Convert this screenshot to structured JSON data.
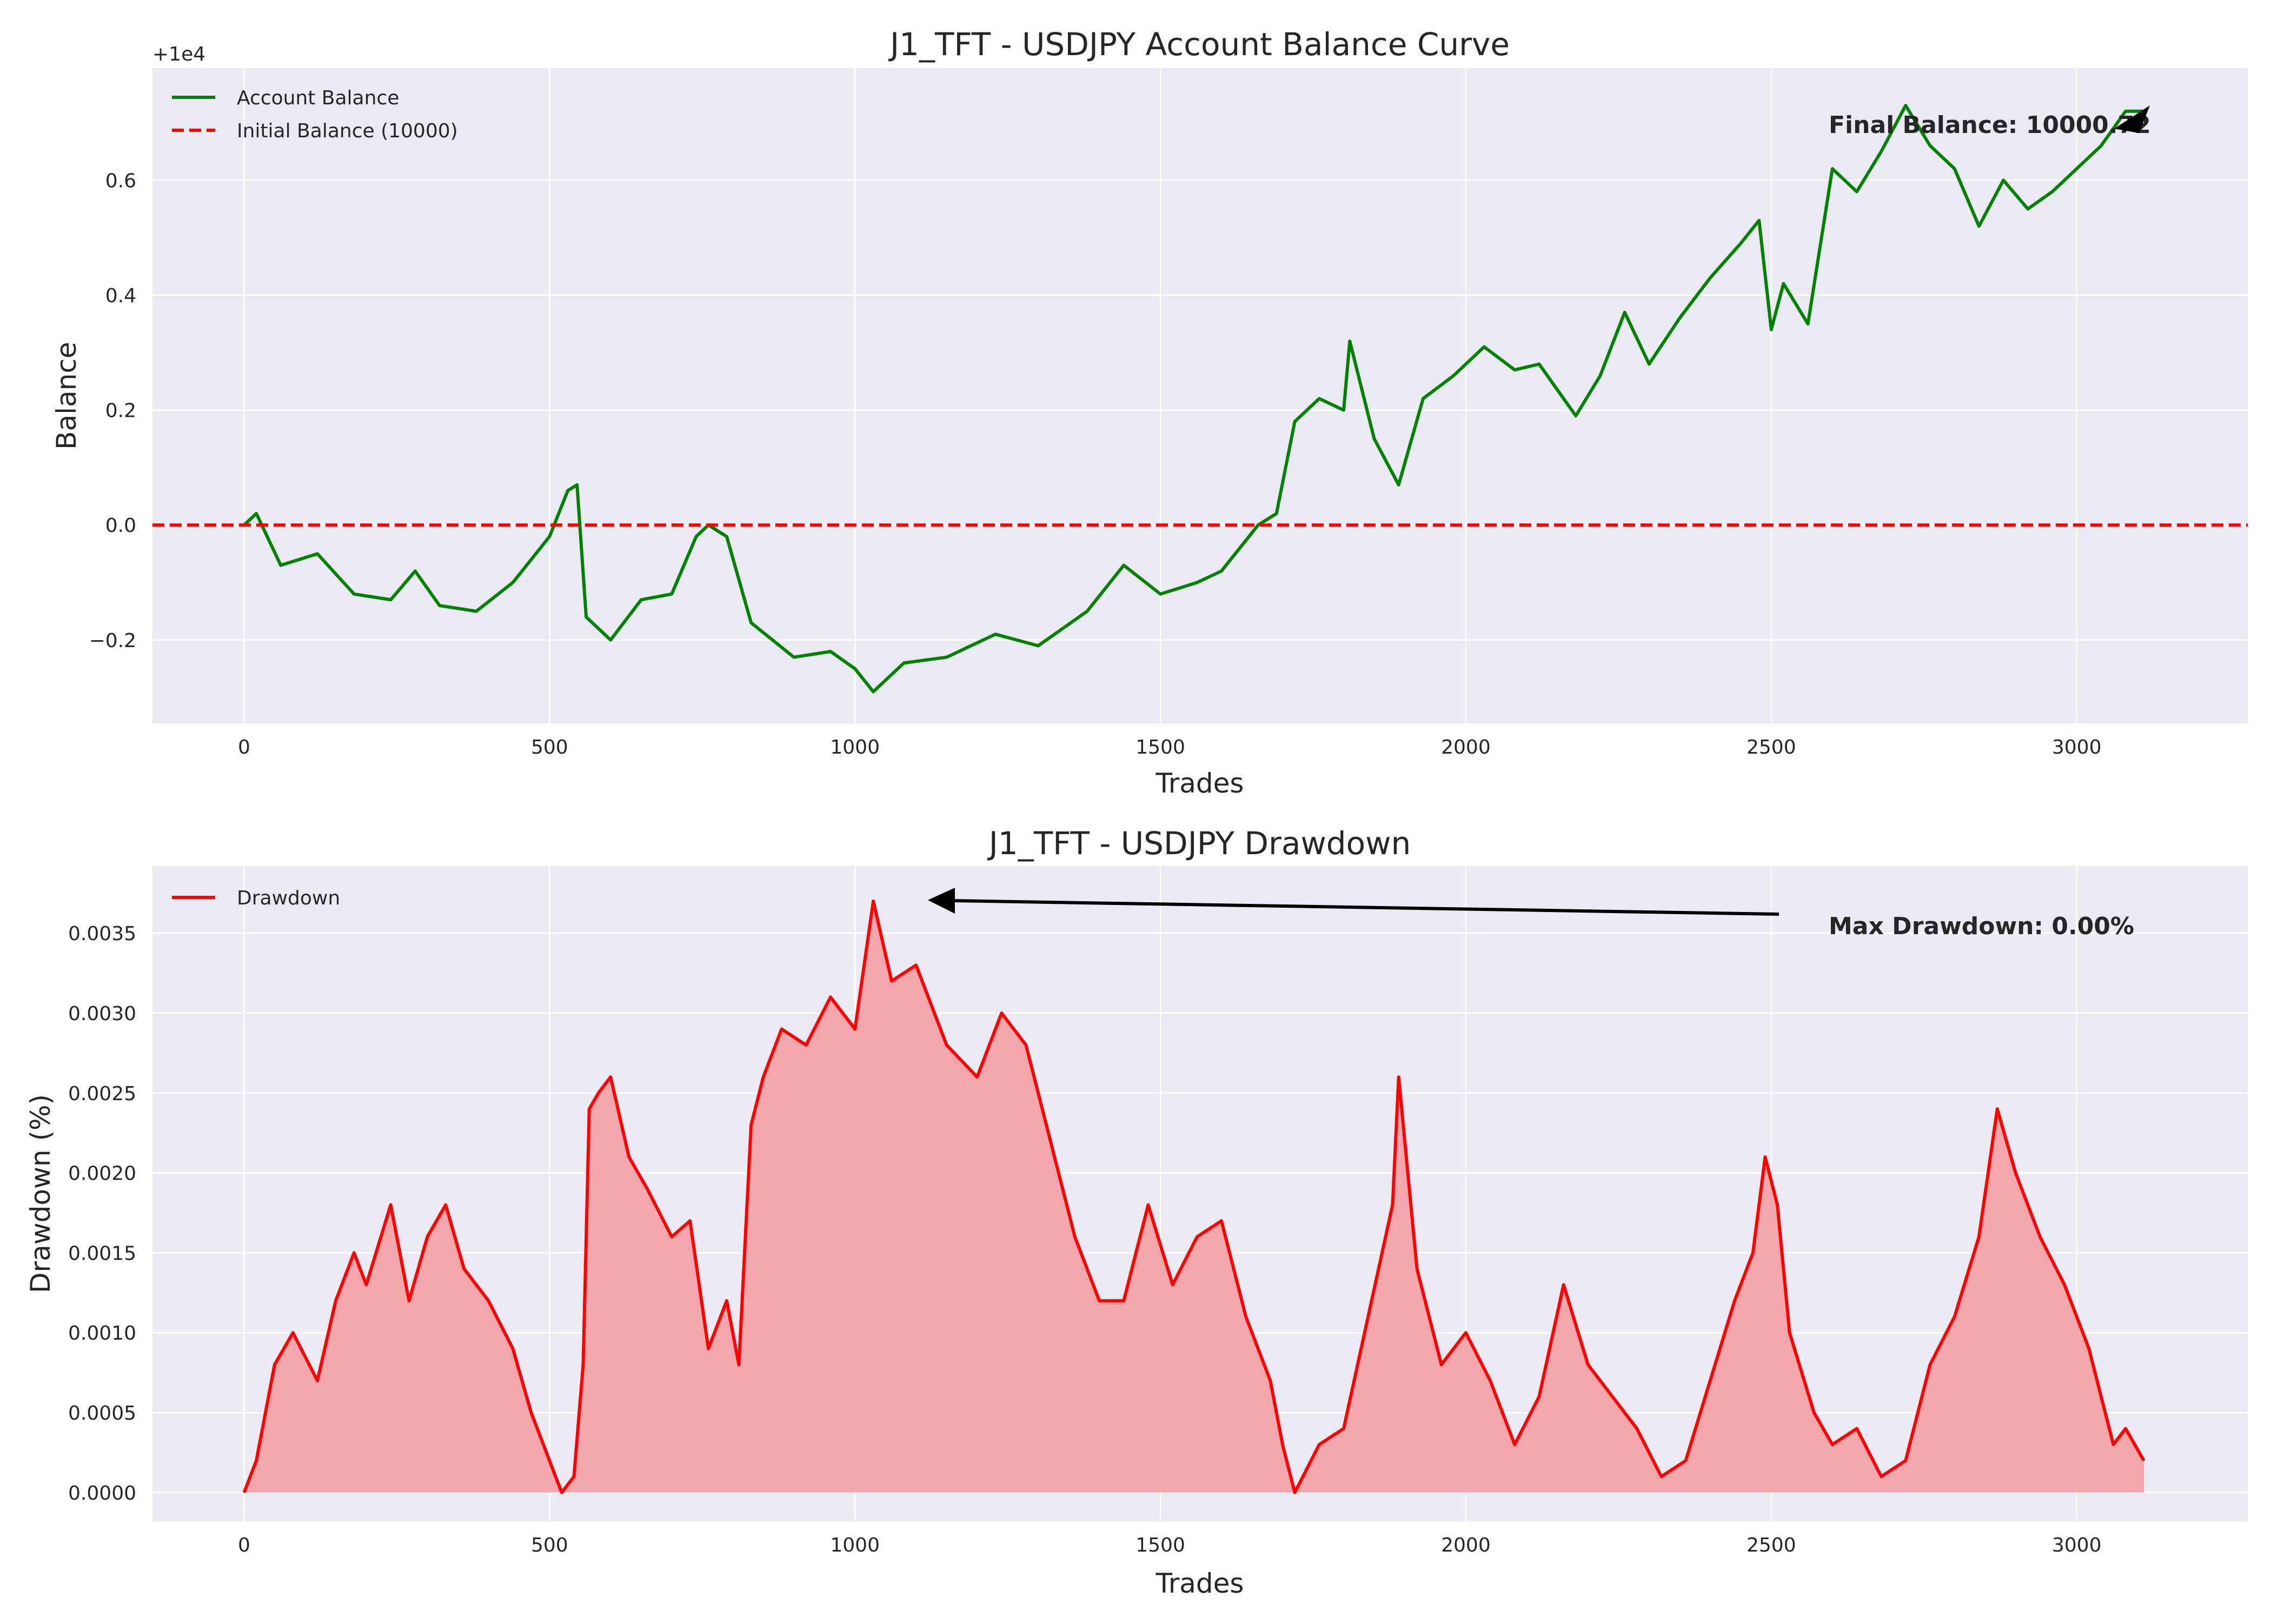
{
  "chart_data": [
    {
      "type": "line",
      "title": "J1_TFT - USDJPY Account Balance Curve",
      "xlabel": "Trades",
      "ylabel": "Balance",
      "offset_label": "+1e4",
      "xlim": [
        -150,
        3280
      ],
      "ylim": [
        -0.345,
        0.795
      ],
      "xticks": [
        0,
        500,
        1000,
        1500,
        2000,
        2500,
        3000
      ],
      "yticks": [
        -0.2,
        0.0,
        0.2,
        0.4,
        0.6
      ],
      "ytick_labels": [
        "−0.2",
        "0.0",
        "0.2",
        "0.4",
        "0.6"
      ],
      "grid": true,
      "legend": "top-left",
      "annotation": "Final Balance: 10000.72",
      "series": [
        {
          "name": "Account Balance",
          "color": "#008000",
          "x": [
            0,
            20,
            60,
            120,
            180,
            240,
            280,
            320,
            380,
            440,
            500,
            530,
            545,
            560,
            600,
            650,
            700,
            740,
            760,
            790,
            830,
            900,
            960,
            1000,
            1030,
            1080,
            1150,
            1230,
            1300,
            1380,
            1440,
            1500,
            1560,
            1600,
            1660,
            1690,
            1720,
            1760,
            1800,
            1810,
            1850,
            1890,
            1930,
            1980,
            2030,
            2080,
            2120,
            2180,
            2220,
            2260,
            2300,
            2350,
            2400,
            2450,
            2480,
            2500,
            2520,
            2560,
            2600,
            2640,
            2680,
            2720,
            2760,
            2800,
            2840,
            2880,
            2920,
            2960,
            3000,
            3040,
            3080,
            3110
          ],
          "y": [
            0.0,
            0.02,
            -0.07,
            -0.05,
            -0.12,
            -0.13,
            -0.08,
            -0.14,
            -0.15,
            -0.1,
            -0.02,
            0.06,
            0.07,
            -0.16,
            -0.2,
            -0.13,
            -0.12,
            -0.02,
            0.0,
            -0.02,
            -0.17,
            -0.23,
            -0.22,
            -0.25,
            -0.29,
            -0.24,
            -0.23,
            -0.19,
            -0.21,
            -0.15,
            -0.07,
            -0.12,
            -0.1,
            -0.08,
            0.0,
            0.02,
            0.18,
            0.22,
            0.2,
            0.32,
            0.15,
            0.07,
            0.22,
            0.26,
            0.31,
            0.27,
            0.28,
            0.19,
            0.26,
            0.37,
            0.28,
            0.36,
            0.43,
            0.49,
            0.53,
            0.34,
            0.42,
            0.35,
            0.62,
            0.58,
            0.65,
            0.73,
            0.66,
            0.62,
            0.52,
            0.6,
            0.55,
            0.58,
            0.62,
            0.66,
            0.72,
            0.72
          ]
        },
        {
          "name": "Initial Balance (10000)",
          "color": "#ff0000",
          "dashed": true,
          "y_constant": 0.0
        }
      ]
    },
    {
      "type": "area",
      "title": "J1_TFT - USDJPY Drawdown",
      "xlabel": "Trades",
      "ylabel": "Drawdown (%)",
      "xlim": [
        -150,
        3280
      ],
      "ylim": [
        -0.00018,
        0.00392
      ],
      "xticks": [
        0,
        500,
        1000,
        1500,
        2000,
        2500,
        3000
      ],
      "yticks": [
        0.0,
        0.0005,
        0.001,
        0.0015,
        0.002,
        0.0025,
        0.003,
        0.0035
      ],
      "ytick_labels": [
        "0.0000",
        "0.0005",
        "0.0010",
        "0.0015",
        "0.0020",
        "0.0025",
        "0.0030",
        "0.0035"
      ],
      "grid": true,
      "legend": "top-left",
      "annotation": "Max Drawdown: 0.00%",
      "series": [
        {
          "name": "Drawdown",
          "color": "#ff0000",
          "fill": "#f0a6ab",
          "x": [
            0,
            20,
            50,
            80,
            120,
            150,
            180,
            200,
            240,
            270,
            300,
            330,
            360,
            400,
            440,
            470,
            500,
            520,
            540,
            555,
            565,
            580,
            600,
            630,
            660,
            700,
            730,
            760,
            790,
            810,
            830,
            850,
            880,
            920,
            960,
            1000,
            1030,
            1060,
            1100,
            1150,
            1200,
            1240,
            1280,
            1320,
            1360,
            1400,
            1440,
            1480,
            1520,
            1560,
            1600,
            1640,
            1680,
            1700,
            1720,
            1760,
            1800,
            1840,
            1880,
            1890,
            1920,
            1960,
            2000,
            2040,
            2080,
            2120,
            2160,
            2200,
            2240,
            2280,
            2320,
            2360,
            2400,
            2440,
            2470,
            2490,
            2510,
            2530,
            2570,
            2600,
            2640,
            2680,
            2720,
            2760,
            2800,
            2840,
            2870,
            2900,
            2940,
            2980,
            3020,
            3060,
            3080,
            3110
          ],
          "y": [
            0.0,
            0.0002,
            0.0008,
            0.001,
            0.0007,
            0.0012,
            0.0015,
            0.0013,
            0.0018,
            0.0012,
            0.0016,
            0.0018,
            0.0014,
            0.0012,
            0.0009,
            0.0005,
            0.0002,
            0.0,
            0.0001,
            0.0008,
            0.0024,
            0.0025,
            0.0026,
            0.0021,
            0.0019,
            0.0016,
            0.0017,
            0.0009,
            0.0012,
            0.0008,
            0.0023,
            0.0026,
            0.0029,
            0.0028,
            0.0031,
            0.0029,
            0.0037,
            0.0032,
            0.0033,
            0.0028,
            0.0026,
            0.003,
            0.0028,
            0.0022,
            0.0016,
            0.0012,
            0.0012,
            0.0018,
            0.0013,
            0.0016,
            0.0017,
            0.0011,
            0.0007,
            0.0003,
            0.0,
            0.0003,
            0.0004,
            0.0011,
            0.0018,
            0.0026,
            0.0014,
            0.0008,
            0.001,
            0.0007,
            0.0003,
            0.0006,
            0.0013,
            0.0008,
            0.0006,
            0.0004,
            0.0001,
            0.0002,
            0.0007,
            0.0012,
            0.0015,
            0.0021,
            0.0018,
            0.001,
            0.0005,
            0.0003,
            0.0004,
            0.0001,
            0.0002,
            0.0008,
            0.0011,
            0.0016,
            0.0024,
            0.002,
            0.0016,
            0.0013,
            0.0009,
            0.0003,
            0.0004,
            0.0002
          ]
        }
      ]
    }
  ]
}
